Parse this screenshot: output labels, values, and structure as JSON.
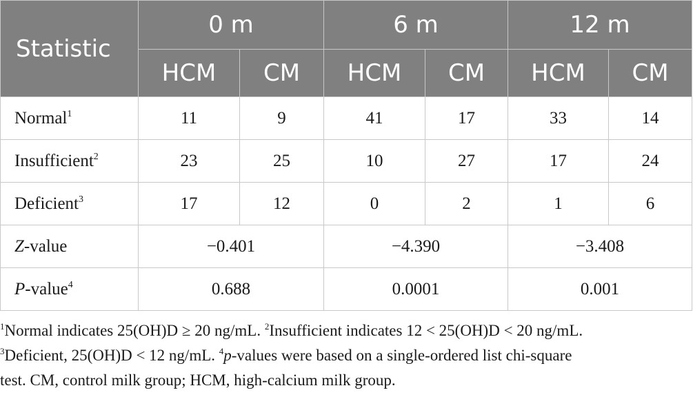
{
  "header": {
    "statistic": "Statistic",
    "periods": [
      "0 m",
      "6 m",
      "12 m"
    ],
    "groups": [
      "HCM",
      "CM",
      "HCM",
      "CM",
      "HCM",
      "CM"
    ]
  },
  "rows": [
    {
      "label": "Normal",
      "sup": "1",
      "values": [
        "11",
        "9",
        "41",
        "17",
        "33",
        "14"
      ]
    },
    {
      "label": "Insufficient",
      "sup": "2",
      "values": [
        "23",
        "25",
        "10",
        "27",
        "17",
        "24"
      ]
    },
    {
      "label": "Deficient",
      "sup": "3",
      "values": [
        "17",
        "12",
        "0",
        "2",
        "1",
        "6"
      ]
    }
  ],
  "zrow": {
    "italic": "Z",
    "rest": "-value",
    "values": [
      "−0.401",
      "−4.390",
      "−3.408"
    ]
  },
  "prow": {
    "italic": "P",
    "rest": "-value",
    "sup": "4",
    "values": [
      "0.688",
      "0.0001",
      "0.001"
    ]
  },
  "footnotes": {
    "n1_sup": "1",
    "n1": "Normal indicates 25(OH)D ≥ 20 ng/mL. ",
    "n2_sup": "2",
    "n2": "Insufficient indicates 12 < 25(OH)D < 20 ng/mL.",
    "n3_sup": "3",
    "n3": "Deficient, 25(OH)D < 12 ng/mL. ",
    "n4_sup": "4",
    "n4_italic": "p",
    "n4": "-values were based on a single-ordered list chi-square",
    "n4_cont": "test. CM, control milk group; HCM, high-calcium milk group."
  }
}
